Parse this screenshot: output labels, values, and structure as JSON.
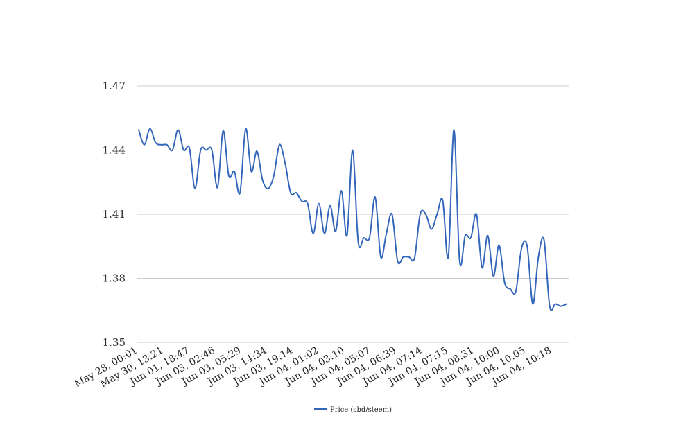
{
  "chart_data": {
    "type": "line",
    "title": "",
    "xlabel": "",
    "ylabel": "",
    "ylim": [
      1.35,
      1.47
    ],
    "yticks": [
      "1.47",
      "1.44",
      "1.41",
      "1.38",
      "1.35"
    ],
    "ytick_values": [
      1.47,
      1.44,
      1.41,
      1.38,
      1.35
    ],
    "xtick_labels": [
      "May 28, 00:01",
      "May 30, 13:21",
      "Jun 01, 18:47",
      "Jun 03, 02:46",
      "Jun 03, 05:29",
      "Jun 03, 14:34",
      "Jun 03, 19:14",
      "Jun 04, 01:02",
      "Jun 04, 03:10",
      "Jun 04, 05:07",
      "Jun 04, 06:39",
      "Jun 04, 07:14",
      "Jun 04, 07:15",
      "Jun 04, 08:31",
      "Jun 04, 10:00",
      "Jun 04, 10:05",
      "Jun 04, 10:18"
    ],
    "grid": true,
    "legend_position": "bottom-center",
    "series": [
      {
        "name": "Price (sbd/steem)",
        "color": "#3366bb",
        "values": [
          1.4495,
          1.4425,
          1.45,
          1.4435,
          1.4425,
          1.4425,
          1.44,
          1.4495,
          1.44,
          1.441,
          1.422,
          1.44,
          1.44,
          1.44,
          1.4225,
          1.449,
          1.428,
          1.43,
          1.42,
          1.45,
          1.43,
          1.4395,
          1.426,
          1.422,
          1.428,
          1.4425,
          1.434,
          1.42,
          1.42,
          1.416,
          1.415,
          1.401,
          1.415,
          1.401,
          1.414,
          1.402,
          1.421,
          1.4,
          1.44,
          1.397,
          1.399,
          1.399,
          1.418,
          1.39,
          1.401,
          1.41,
          1.388,
          1.39,
          1.39,
          1.3895,
          1.41,
          1.41,
          1.403,
          1.41,
          1.4165,
          1.39,
          1.4495,
          1.388,
          1.4,
          1.399,
          1.41,
          1.385,
          1.4,
          1.381,
          1.3955,
          1.378,
          1.375,
          1.374,
          1.394,
          1.395,
          1.368,
          1.39,
          1.398,
          1.367,
          1.368,
          1.367,
          1.368
        ]
      }
    ]
  }
}
